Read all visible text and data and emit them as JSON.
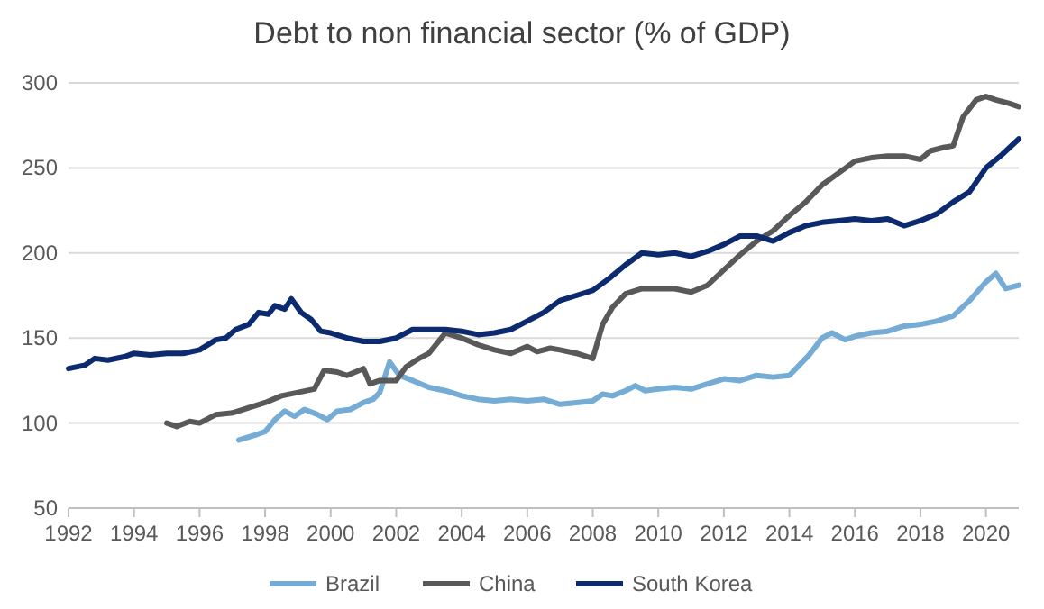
{
  "chart_data": {
    "type": "line",
    "title": "Debt to non financial sector (% of GDP)",
    "xlim": [
      1992,
      2021
    ],
    "xticks": [
      1992,
      1994,
      1996,
      1998,
      2000,
      2002,
      2004,
      2006,
      2008,
      2010,
      2012,
      2014,
      2016,
      2018,
      2020
    ],
    "ylim": [
      50,
      300
    ],
    "yticks": [
      50,
      100,
      150,
      200,
      250,
      300
    ],
    "grid": "y",
    "legend": "bottom",
    "marker": "none",
    "line_style": "solid",
    "series": [
      {
        "name": "Brazil",
        "color": "#74acd6",
        "x": [
          1997.2,
          1997.7,
          1998,
          1998.3,
          1998.6,
          1998.9,
          1999.2,
          1999.6,
          1999.9,
          2000.2,
          2000.6,
          2001,
          2001.3,
          2001.5,
          2001.8,
          2002.1,
          2002.5,
          2003,
          2003.5,
          2004,
          2004.5,
          2005,
          2005.5,
          2006,
          2006.5,
          2007,
          2007.5,
          2008,
          2008.3,
          2008.6,
          2009,
          2009.3,
          2009.6,
          2010,
          2010.5,
          2011,
          2011.5,
          2012,
          2012.5,
          2013,
          2013.5,
          2014,
          2014.3,
          2014.6,
          2015,
          2015.3,
          2015.7,
          2016,
          2016.5,
          2017,
          2017.5,
          2018,
          2018.5,
          2019,
          2019.5,
          2020,
          2020.3,
          2020.6,
          2021
        ],
        "values": [
          90,
          93,
          95,
          102,
          107,
          104,
          108,
          105,
          102,
          107,
          108,
          112,
          114,
          118,
          136,
          128,
          125,
          121,
          119,
          116,
          114,
          113,
          114,
          113,
          114,
          111,
          112,
          113,
          117,
          116,
          119,
          122,
          119,
          120,
          121,
          120,
          123,
          126,
          125,
          128,
          127,
          128,
          134,
          140,
          150,
          153,
          149,
          151,
          153,
          154,
          157,
          158,
          160,
          163,
          172,
          183,
          188,
          179,
          181
        ]
      },
      {
        "name": "China",
        "color": "#595959",
        "x": [
          1995,
          1995.3,
          1995.7,
          1996,
          1996.5,
          1997,
          1997.5,
          1998,
          1998.5,
          1999,
          1999.5,
          1999.8,
          2000.2,
          2000.5,
          2001,
          2001.2,
          2001.5,
          2002,
          2002.3,
          2002.7,
          2003,
          2003.5,
          2004,
          2004.5,
          2005,
          2005.5,
          2006,
          2006.3,
          2006.7,
          2007,
          2007.5,
          2008,
          2008.3,
          2008.6,
          2009,
          2009.5,
          2010,
          2010.5,
          2011,
          2011.5,
          2012,
          2012.5,
          2013,
          2013.5,
          2014,
          2014.5,
          2015,
          2015.5,
          2016,
          2016.5,
          2017,
          2017.5,
          2018,
          2018.3,
          2018.7,
          2019,
          2019.3,
          2019.7,
          2020,
          2020.3,
          2020.7,
          2021
        ],
        "values": [
          100,
          98,
          101,
          100,
          105,
          106,
          109,
          112,
          116,
          118,
          120,
          131,
          130,
          128,
          132,
          123,
          125,
          125,
          133,
          138,
          141,
          153,
          150,
          146,
          143,
          141,
          145,
          142,
          144,
          143,
          141,
          138,
          158,
          168,
          176,
          179,
          179,
          179,
          177,
          181,
          190,
          199,
          207,
          213,
          222,
          230,
          240,
          247,
          254,
          256,
          257,
          257,
          255,
          260,
          262,
          263,
          280,
          290,
          292,
          290,
          288,
          286
        ]
      },
      {
        "name": "South Korea",
        "color": "#0b2a6f",
        "x": [
          1992,
          1992.5,
          1992.8,
          1993.2,
          1993.7,
          1994,
          1994.5,
          1995,
          1995.5,
          1996,
          1996.5,
          1996.8,
          1997.1,
          1997.5,
          1997.8,
          1998.1,
          1998.3,
          1998.6,
          1998.8,
          1999.1,
          1999.4,
          1999.7,
          2000,
          2000.5,
          2001,
          2001.5,
          2002,
          2002.5,
          2003,
          2003.5,
          2004,
          2004.5,
          2005,
          2005.5,
          2006,
          2006.5,
          2007,
          2007.5,
          2008,
          2008.5,
          2009,
          2009.5,
          2010,
          2010.5,
          2011,
          2011.5,
          2012,
          2012.5,
          2013,
          2013.5,
          2014,
          2014.5,
          2015,
          2015.5,
          2016,
          2016.5,
          2017,
          2017.5,
          2018,
          2018.5,
          2019,
          2019.5,
          2020,
          2020.5,
          2021
        ],
        "values": [
          132,
          134,
          138,
          137,
          139,
          141,
          140,
          141,
          141,
          143,
          149,
          150,
          155,
          158,
          165,
          164,
          169,
          167,
          173,
          165,
          161,
          154,
          153,
          150,
          148,
          148,
          150,
          155,
          155,
          155,
          154,
          152,
          153,
          155,
          160,
          165,
          172,
          175,
          178,
          185,
          193,
          200,
          199,
          200,
          198,
          201,
          205,
          210,
          210,
          207,
          212,
          216,
          218,
          219,
          220,
          219,
          220,
          216,
          219,
          223,
          230,
          236,
          250,
          258,
          267
        ]
      }
    ]
  }
}
